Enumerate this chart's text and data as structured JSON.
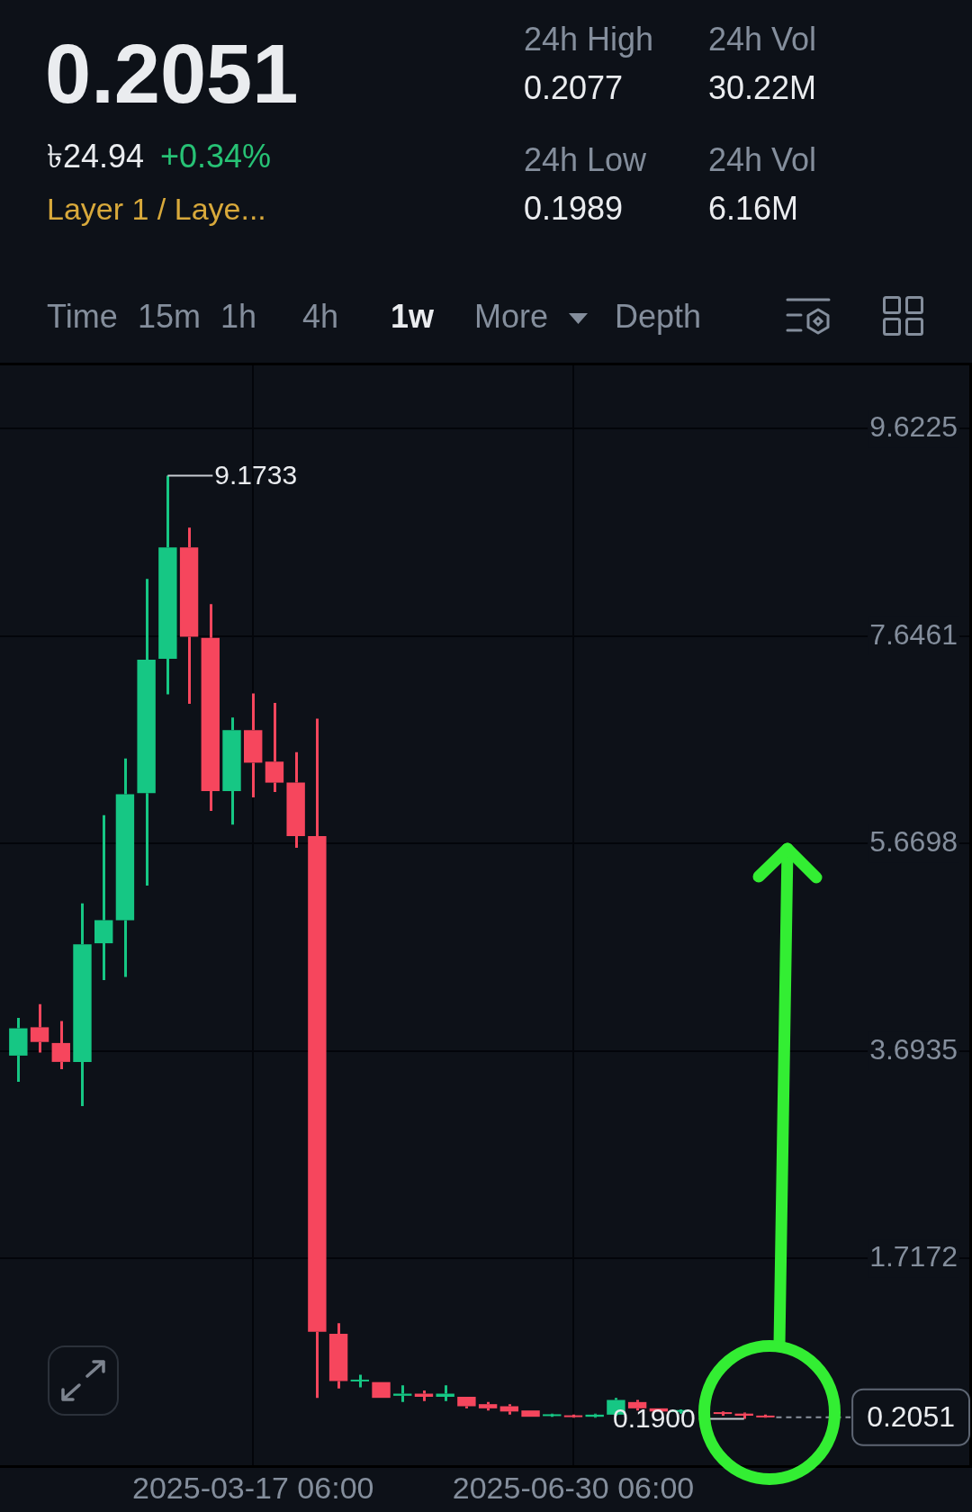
{
  "chart_data": {
    "type": "candlestick",
    "title": "0.2051",
    "annotations": [
      "৳24.94",
      "+0.34%",
      "Layer 1 / Laye...",
      "24h High",
      "0.2077",
      "24h Low",
      "0.1989",
      "24h Vol",
      "30.22M",
      "24h Vol",
      "6.16M",
      "Time",
      "15m",
      "1h",
      "4h",
      "1w",
      "More",
      "Depth",
      {
        "text": "9.1733",
        "x": "2025-02-17T06:00",
        "y": 9.1733
      },
      {
        "text": "0.1900",
        "x": "2025-08-25T06:00",
        "y": 0.19
      }
    ],
    "x": [
      "2024-12-30T06:00",
      "2025-01-06T06:00",
      "2025-01-13T06:00",
      "2025-01-20T06:00",
      "2025-01-27T06:00",
      "2025-02-03T06:00",
      "2025-02-10T06:00",
      "2025-02-17T06:00",
      "2025-02-24T06:00",
      "2025-03-03T06:00",
      "2025-03-10T06:00",
      "2025-03-17T06:00",
      "2025-03-24T06:00",
      "2025-03-31T06:00",
      "2025-04-07T06:00",
      "2025-04-14T06:00",
      "2025-04-21T06:00",
      "2025-04-28T06:00",
      "2025-05-05T06:00",
      "2025-05-12T06:00",
      "2025-05-19T06:00",
      "2025-05-26T06:00",
      "2025-06-02T06:00",
      "2025-06-09T06:00",
      "2025-06-16T06:00",
      "2025-06-23T06:00",
      "2025-06-30T06:00",
      "2025-07-07T06:00",
      "2025-07-14T06:00",
      "2025-07-21T06:00",
      "2025-07-28T06:00",
      "2025-08-04T06:00",
      "2025-08-18T06:00",
      "2025-08-25T06:00",
      "2025-09-01T06:00"
    ],
    "ohlc": [
      [
        3.65,
        4.01,
        3.4,
        3.91
      ],
      [
        3.92,
        4.14,
        3.68,
        3.78
      ],
      [
        3.77,
        3.98,
        3.52,
        3.59
      ],
      [
        3.59,
        5.1,
        3.17,
        4.71
      ],
      [
        4.72,
        5.94,
        4.37,
        4.94
      ],
      [
        4.94,
        6.48,
        4.4,
        6.14
      ],
      [
        6.15,
        8.19,
        5.27,
        7.42
      ],
      [
        7.43,
        9.1733,
        7.09,
        8.49
      ],
      [
        8.49,
        8.68,
        7.0,
        7.64
      ],
      [
        7.63,
        7.95,
        5.98,
        6.17
      ],
      [
        6.17,
        6.87,
        5.85,
        6.75
      ],
      [
        6.75,
        7.1,
        6.11,
        6.44
      ],
      [
        6.45,
        7.01,
        6.16,
        6.25
      ],
      [
        6.25,
        6.54,
        5.63,
        5.74
      ],
      [
        5.74,
        6.86,
        0.39,
        1.02
      ],
      [
        1.0,
        1.1,
        0.48,
        0.55
      ],
      [
        0.55,
        0.61,
        0.49,
        0.56
      ],
      [
        0.54,
        0.54,
        0.39,
        0.39
      ],
      [
        0.41,
        0.51,
        0.35,
        0.43
      ],
      [
        0.43,
        0.46,
        0.36,
        0.4
      ],
      [
        0.4,
        0.51,
        0.36,
        0.43
      ],
      [
        0.4,
        0.4,
        0.29,
        0.31
      ],
      [
        0.33,
        0.35,
        0.27,
        0.29
      ],
      [
        0.31,
        0.33,
        0.23,
        0.26
      ],
      [
        0.27,
        0.27,
        0.21,
        0.21
      ],
      [
        0.22,
        0.24,
        0.21,
        0.23
      ],
      [
        0.22,
        0.23,
        0.2,
        0.21
      ],
      [
        0.21,
        0.24,
        0.2,
        0.23
      ],
      [
        0.23,
        0.39,
        0.22,
        0.37
      ],
      [
        0.35,
        0.37,
        0.27,
        0.29
      ],
      [
        0.29,
        0.29,
        0.26,
        0.26
      ],
      [
        0.26,
        0.28,
        0.24,
        0.27
      ],
      [
        0.25,
        0.26,
        0.22,
        0.24
      ],
      [
        0.24,
        0.25,
        0.19,
        0.22
      ],
      [
        0.22,
        0.23,
        0.2,
        0.2051
      ]
    ],
    "colors": [
      "#16c784",
      "#f6465d",
      "#f6465d",
      "#16c784",
      "#16c784",
      "#16c784",
      "#16c784",
      "#16c784",
      "#f6465d",
      "#f6465d",
      "#16c784",
      "#f6465d",
      "#f6465d",
      "#f6465d",
      "#f6465d",
      "#f6465d",
      "#16c784",
      "#f6465d",
      "#16c784",
      "#f6465d",
      "#16c784",
      "#f6465d",
      "#f6465d",
      "#f6465d",
      "#f6465d",
      "#16c784",
      "#f6465d",
      "#16c784",
      "#16c784",
      "#f6465d",
      "#f6465d",
      "#16c784",
      "#f6465d",
      "#f6465d",
      "#f6465d"
    ],
    "xlim": [
      "2024-12-24T06:00",
      "2025-11-08T00:00"
    ],
    "xticks": [
      {
        "value": "2025-03-17T06:00",
        "label": "2025-03-17 06:00"
      },
      {
        "value": "2025-06-30T06:00",
        "label": "2025-06-30 06:00"
      }
    ],
    "ylim": [
      -0.26,
      10.25
    ],
    "yticks": [
      1.7172,
      3.6935,
      5.6698,
      7.6461,
      9.6225
    ],
    "grid": true,
    "ref_lines": [
      {
        "axis": "y",
        "value": 0.2051,
        "label": "0.2051",
        "line_style": "dashed",
        "color": "#8a919c"
      }
    ]
  }
}
